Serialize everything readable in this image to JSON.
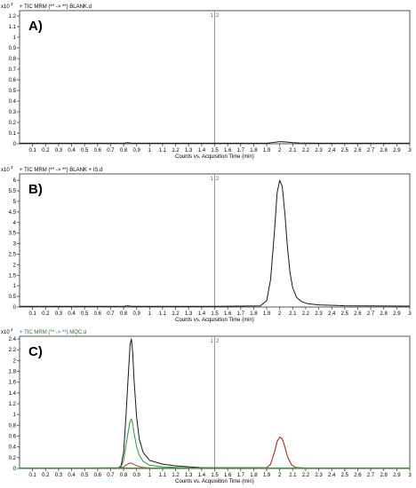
{
  "chart_data": [
    {
      "type": "line",
      "panel_label": "A)",
      "header": "+ TIC MRM (** -> **) BLANK.d",
      "y_multiplier": "x10",
      "y_multiplier_exp": "3",
      "xlabel": "Counts vs. Acquisition Time (min)",
      "xlim": [
        0,
        3
      ],
      "ylim": [
        0,
        1.25
      ],
      "xticks": [
        "0.1",
        "0.2",
        "0.3",
        "0.4",
        "0.5",
        "0.6",
        "0.7",
        "0.8",
        "0.9",
        "1",
        "1.1",
        "1.2",
        "1.3",
        "1.4",
        "1.5",
        "1.6",
        "1.7",
        "1.8",
        "1.9",
        "2",
        "2.1",
        "2.2",
        "2.3",
        "2.4",
        "2.5",
        "2.6",
        "2.7",
        "2.8",
        "2.9",
        "3"
      ],
      "yticks": [
        "0",
        "0.1",
        "0.2",
        "0.3",
        "0.4",
        "0.5",
        "0.6",
        "0.7",
        "0.8",
        "0.9",
        "1",
        "1.1",
        "1.2"
      ],
      "marker": {
        "x": 1.5,
        "label_left": "1",
        "label_right": "2"
      },
      "series": [
        {
          "color": "#1a1a1a",
          "x": [
            0,
            0.5,
            0.8,
            0.83,
            0.86,
            1.0,
            1.5,
            1.9,
            1.95,
            2.0,
            2.05,
            2.1,
            2.15,
            2.3,
            3.0
          ],
          "y": [
            0.005,
            0.005,
            0.005,
            0.01,
            0.005,
            0.005,
            0.005,
            0.005,
            0.012,
            0.02,
            0.017,
            0.01,
            0.007,
            0.005,
            0.005
          ]
        }
      ]
    },
    {
      "type": "line",
      "panel_label": "B)",
      "header": "+ TIC MRM (** -> **) BLANK + IS.d",
      "y_multiplier": "x10",
      "y_multiplier_exp": "3",
      "xlabel": "Counts vs. Acquisition Time (min)",
      "xlim": [
        0,
        3
      ],
      "ylim": [
        0,
        6.3
      ],
      "xticks": [
        "0.1",
        "0.2",
        "0.3",
        "0.4",
        "0.5",
        "0.6",
        "0.7",
        "0.8",
        "0.9",
        "1",
        "1.1",
        "1.2",
        "1.3",
        "1.4",
        "1.5",
        "1.6",
        "1.7",
        "1.8",
        "1.9",
        "2",
        "2.1",
        "2.2",
        "2.3",
        "2.4",
        "2.5",
        "2.6",
        "2.7",
        "2.8",
        "2.9",
        "3"
      ],
      "yticks": [
        "0",
        "0.5",
        "1",
        "1.5",
        "2",
        "2.5",
        "3",
        "3.5",
        "4",
        "4.5",
        "5",
        "5.5",
        "6"
      ],
      "marker": {
        "x": 1.5,
        "label_left": "1",
        "label_right": "2"
      },
      "series": [
        {
          "color": "#1a1a1a",
          "x": [
            0,
            0.8,
            0.83,
            0.86,
            1.5,
            1.85,
            1.9,
            1.93,
            1.96,
            1.98,
            2.0,
            2.02,
            2.04,
            2.06,
            2.08,
            2.1,
            2.13,
            2.17,
            2.22,
            2.3,
            2.5,
            3.0
          ],
          "y": [
            0.03,
            0.03,
            0.06,
            0.03,
            0.03,
            0.05,
            0.3,
            1.3,
            3.6,
            5.4,
            6.0,
            5.7,
            4.4,
            2.8,
            1.6,
            0.9,
            0.45,
            0.25,
            0.15,
            0.1,
            0.06,
            0.04
          ]
        }
      ]
    },
    {
      "type": "line",
      "panel_label": "C)",
      "header": "+ TIC MRM (** -> **) MQC.d",
      "y_multiplier": "x10",
      "y_multiplier_exp": "4",
      "xlabel": "Counts vs. Acquisition Time (min)",
      "xlim": [
        0,
        3
      ],
      "ylim": [
        0,
        2.45
      ],
      "xticks": [
        "0.1",
        "0.2",
        "0.3",
        "0.4",
        "0.5",
        "0.6",
        "0.7",
        "0.8",
        "0.9",
        "1",
        "1.1",
        "1.2",
        "1.3",
        "1.4",
        "1.5",
        "1.6",
        "1.7",
        "1.8",
        "1.9",
        "2",
        "2.1",
        "2.2",
        "2.3",
        "2.4",
        "2.5",
        "2.6",
        "2.7",
        "2.8",
        "2.9",
        "3"
      ],
      "yticks": [
        "0",
        "0.2",
        "0.4",
        "0.6",
        "0.8",
        "1",
        "1.2",
        "1.4",
        "1.6",
        "1.8",
        "2",
        "2.2",
        "2.4"
      ],
      "marker": {
        "x": 1.5,
        "label_left": "1",
        "label_right": "2"
      },
      "series": [
        {
          "color": "#1a1a1a",
          "x": [
            0,
            0.76,
            0.78,
            0.8,
            0.82,
            0.84,
            0.85,
            0.86,
            0.87,
            0.88,
            0.9,
            0.92,
            0.95,
            1.0,
            1.1,
            1.2,
            1.3,
            1.4,
            1.9,
            1.93,
            1.96,
            1.98,
            2.0,
            2.02,
            2.04,
            2.06,
            2.09,
            2.12,
            2.2,
            3.0
          ],
          "y": [
            0.005,
            0.01,
            0.05,
            0.3,
            1.05,
            1.9,
            2.3,
            2.4,
            2.15,
            1.65,
            0.95,
            0.55,
            0.3,
            0.15,
            0.08,
            0.05,
            0.03,
            0.015,
            0.015,
            0.08,
            0.3,
            0.5,
            0.58,
            0.55,
            0.4,
            0.22,
            0.07,
            0.02,
            0.005,
            0.005
          ]
        },
        {
          "color": "#2a9a3a",
          "x": [
            0,
            0.76,
            0.78,
            0.8,
            0.82,
            0.84,
            0.85,
            0.86,
            0.87,
            0.88,
            0.9,
            0.92,
            0.95,
            1.0,
            1.1,
            1.3,
            3.0
          ],
          "y": [
            0.005,
            0.01,
            0.03,
            0.15,
            0.45,
            0.75,
            0.88,
            0.92,
            0.83,
            0.66,
            0.4,
            0.25,
            0.13,
            0.06,
            0.03,
            0.01,
            0.005
          ]
        },
        {
          "color": "#c43c2a",
          "x": [
            0,
            0.76,
            0.8,
            0.83,
            0.85,
            0.87,
            0.9,
            0.95,
            1.0,
            1.1,
            1.9,
            1.93,
            1.96,
            1.98,
            2.0,
            2.02,
            2.04,
            2.06,
            2.09,
            2.12,
            2.2,
            3.0
          ],
          "y": [
            0.005,
            0.005,
            0.03,
            0.08,
            0.1,
            0.09,
            0.05,
            0.02,
            0.01,
            0.005,
            0.015,
            0.08,
            0.3,
            0.5,
            0.58,
            0.55,
            0.4,
            0.22,
            0.07,
            0.02,
            0.005,
            0.005
          ]
        },
        {
          "color": "#2a9a3a",
          "x": [
            0,
            3.0
          ],
          "y": [
            0.01,
            0.01
          ]
        }
      ]
    }
  ]
}
